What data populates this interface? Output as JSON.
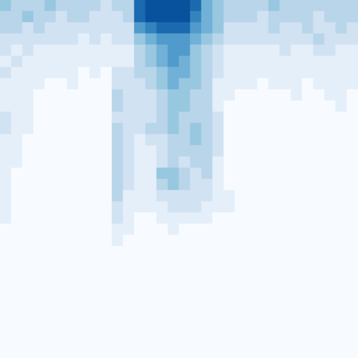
{
  "chart_data": {
    "type": "heatmap",
    "tick_labels": false,
    "grid": false,
    "zlim": [
      0,
      9
    ],
    "cells": [
      [
        4,
        3,
        3,
        3,
        4,
        3,
        3,
        3,
        3,
        2,
        3,
        3,
        8,
        9,
        9,
        9,
        9,
        8,
        5,
        4,
        3,
        3,
        3,
        3,
        4,
        3,
        3,
        3,
        3,
        3,
        3,
        3
      ],
      [
        3,
        3,
        4,
        3,
        3,
        2,
        3,
        3,
        2,
        2,
        2,
        3,
        8,
        9,
        9,
        9,
        9,
        7,
        5,
        4,
        3,
        3,
        3,
        2,
        3,
        3,
        3,
        3,
        2,
        3,
        3,
        3
      ],
      [
        3,
        3,
        2,
        3,
        2,
        2,
        2,
        2,
        2,
        2,
        2,
        2,
        6,
        7,
        8,
        8,
        8,
        6,
        5,
        4,
        2,
        2,
        2,
        2,
        3,
        2,
        2,
        3,
        2,
        2,
        3,
        2
      ],
      [
        2,
        2,
        2,
        2,
        2,
        2,
        2,
        1,
        2,
        1,
        2,
        2,
        4,
        5,
        6,
        6,
        6,
        5,
        4,
        3,
        2,
        2,
        2,
        2,
        2,
        2,
        2,
        2,
        3,
        2,
        2,
        2
      ],
      [
        2,
        1,
        2,
        1,
        1,
        1,
        1,
        1,
        1,
        1,
        1,
        1,
        3,
        4,
        5,
        6,
        6,
        4,
        3,
        2,
        1,
        1,
        1,
        1,
        1,
        2,
        1,
        1,
        2,
        2,
        1,
        1
      ],
      [
        1,
        2,
        1,
        1,
        1,
        1,
        1,
        1,
        1,
        1,
        1,
        1,
        3,
        4,
        5,
        6,
        5,
        4,
        3,
        2,
        1,
        1,
        1,
        1,
        1,
        1,
        1,
        1,
        1,
        1,
        1,
        1
      ],
      [
        2,
        1,
        1,
        1,
        1,
        1,
        1,
        0,
        1,
        0,
        2,
        2,
        3,
        3,
        4,
        5,
        5,
        4,
        3,
        2,
        1,
        1,
        1,
        1,
        1,
        1,
        1,
        1,
        1,
        1,
        1,
        1
      ],
      [
        1,
        1,
        1,
        1,
        0,
        0,
        1,
        0,
        0,
        0,
        2,
        2,
        2,
        3,
        4,
        5,
        4,
        4,
        3,
        1,
        1,
        1,
        1,
        0,
        1,
        1,
        1,
        0,
        1,
        1,
        1,
        1
      ],
      [
        1,
        1,
        1,
        0,
        0,
        0,
        0,
        0,
        0,
        0,
        3,
        2,
        2,
        2,
        3,
        4,
        4,
        3,
        3,
        1,
        1,
        0,
        0,
        0,
        0,
        0,
        1,
        0,
        0,
        1,
        1,
        0
      ],
      [
        1,
        1,
        1,
        0,
        0,
        0,
        0,
        0,
        0,
        0,
        3,
        2,
        2,
        2,
        3,
        4,
        4,
        3,
        3,
        1,
        0,
        0,
        0,
        0,
        0,
        0,
        0,
        0,
        0,
        0,
        1,
        0
      ],
      [
        2,
        1,
        1,
        0,
        0,
        0,
        0,
        0,
        0,
        0,
        2,
        2,
        2,
        2,
        3,
        4,
        3,
        3,
        3,
        2,
        0,
        0,
        0,
        0,
        0,
        0,
        0,
        0,
        0,
        0,
        0,
        0
      ],
      [
        2,
        1,
        1,
        0,
        0,
        0,
        0,
        0,
        0,
        0,
        3,
        2,
        2,
        3,
        3,
        4,
        3,
        4,
        3,
        2,
        0,
        0,
        0,
        0,
        0,
        0,
        0,
        0,
        0,
        0,
        0,
        0
      ],
      [
        1,
        1,
        0,
        0,
        0,
        0,
        0,
        0,
        0,
        0,
        3,
        2,
        1,
        2,
        2,
        3,
        3,
        4,
        3,
        2,
        0,
        0,
        0,
        0,
        0,
        0,
        0,
        0,
        0,
        0,
        0,
        0
      ],
      [
        1,
        1,
        0,
        0,
        0,
        0,
        0,
        0,
        0,
        0,
        3,
        2,
        1,
        1,
        2,
        3,
        3,
        3,
        3,
        2,
        0,
        0,
        0,
        0,
        0,
        0,
        0,
        0,
        0,
        0,
        0,
        0
      ],
      [
        1,
        1,
        0,
        0,
        0,
        0,
        0,
        0,
        0,
        0,
        3,
        2,
        1,
        1,
        2,
        3,
        2,
        3,
        3,
        1,
        0,
        0,
        0,
        0,
        0,
        0,
        0,
        0,
        0,
        0,
        0,
        0
      ],
      [
        1,
        0,
        0,
        0,
        0,
        0,
        0,
        0,
        0,
        0,
        3,
        2,
        1,
        1,
        4,
        4,
        3,
        2,
        3,
        1,
        0,
        0,
        0,
        0,
        0,
        0,
        0,
        0,
        0,
        0,
        0,
        0
      ],
      [
        1,
        0,
        0,
        0,
        0,
        0,
        0,
        0,
        0,
        0,
        3,
        2,
        1,
        1,
        3,
        4,
        3,
        2,
        2,
        1,
        0,
        0,
        0,
        0,
        0,
        0,
        0,
        0,
        0,
        0,
        0,
        0
      ],
      [
        1,
        0,
        0,
        0,
        0,
        0,
        0,
        0,
        0,
        0,
        3,
        1,
        1,
        1,
        2,
        2,
        2,
        2,
        2,
        1,
        1,
        0,
        0,
        0,
        0,
        0,
        0,
        0,
        0,
        0,
        0,
        0
      ],
      [
        1,
        0,
        0,
        0,
        0,
        0,
        0,
        0,
        0,
        0,
        2,
        1,
        1,
        1,
        1,
        2,
        2,
        2,
        1,
        1,
        1,
        0,
        0,
        0,
        0,
        0,
        0,
        0,
        0,
        0,
        0,
        0
      ],
      [
        1,
        0,
        0,
        0,
        0,
        0,
        0,
        0,
        0,
        0,
        2,
        1,
        0,
        0,
        1,
        1,
        1,
        1,
        1,
        0,
        0,
        0,
        0,
        0,
        0,
        0,
        0,
        0,
        0,
        0,
        0,
        0
      ],
      [
        0,
        0,
        0,
        0,
        0,
        0,
        0,
        0,
        0,
        0,
        1,
        1,
        0,
        0,
        0,
        1,
        0,
        0,
        0,
        0,
        0,
        0,
        0,
        0,
        0,
        0,
        0,
        0,
        0,
        0,
        0,
        0
      ],
      [
        0,
        0,
        0,
        0,
        0,
        0,
        0,
        0,
        0,
        0,
        1,
        0,
        0,
        0,
        0,
        0,
        0,
        0,
        0,
        0,
        0,
        0,
        0,
        0,
        0,
        0,
        0,
        0,
        0,
        0,
        0,
        0
      ],
      [
        0,
        0,
        0,
        0,
        0,
        0,
        0,
        0,
        0,
        0,
        0,
        0,
        0,
        0,
        0,
        0,
        0,
        0,
        0,
        0,
        0,
        0,
        0,
        0,
        0,
        0,
        0,
        0,
        0,
        0,
        0,
        0
      ],
      [
        0,
        0,
        0,
        0,
        0,
        0,
        0,
        0,
        0,
        0,
        0,
        0,
        0,
        0,
        0,
        0,
        0,
        0,
        0,
        0,
        0,
        0,
        0,
        0,
        0,
        0,
        0,
        0,
        0,
        0,
        0,
        0
      ],
      [
        0,
        0,
        0,
        0,
        0,
        0,
        0,
        0,
        0,
        0,
        0,
        0,
        0,
        0,
        0,
        0,
        0,
        0,
        0,
        0,
        0,
        0,
        0,
        0,
        0,
        0,
        0,
        0,
        0,
        0,
        0,
        0
      ],
      [
        0,
        0,
        0,
        0,
        0,
        0,
        0,
        0,
        0,
        0,
        0,
        0,
        0,
        0,
        0,
        0,
        0,
        0,
        0,
        0,
        0,
        0,
        0,
        0,
        0,
        0,
        0,
        0,
        0,
        0,
        0,
        0
      ],
      [
        0,
        0,
        0,
        0,
        0,
        0,
        0,
        0,
        0,
        0,
        0,
        0,
        0,
        0,
        0,
        0,
        0,
        0,
        0,
        0,
        0,
        0,
        0,
        0,
        0,
        0,
        0,
        0,
        0,
        0,
        0,
        0
      ],
      [
        0,
        0,
        0,
        0,
        0,
        0,
        0,
        0,
        0,
        0,
        0,
        0,
        0,
        0,
        0,
        0,
        0,
        0,
        0,
        0,
        0,
        0,
        0,
        0,
        0,
        0,
        0,
        0,
        0,
        0,
        0,
        0
      ],
      [
        0,
        0,
        0,
        0,
        0,
        0,
        0,
        0,
        0,
        0,
        0,
        0,
        0,
        0,
        0,
        0,
        0,
        0,
        0,
        0,
        0,
        0,
        0,
        0,
        0,
        0,
        0,
        0,
        0,
        0,
        0,
        0
      ],
      [
        0,
        0,
        0,
        0,
        0,
        0,
        0,
        0,
        0,
        0,
        0,
        0,
        0,
        0,
        0,
        0,
        0,
        0,
        0,
        0,
        0,
        0,
        0,
        0,
        0,
        0,
        0,
        0,
        0,
        0,
        0,
        0
      ],
      [
        0,
        0,
        0,
        0,
        0,
        0,
        0,
        0,
        0,
        0,
        0,
        0,
        0,
        0,
        0,
        0,
        0,
        0,
        0,
        0,
        0,
        0,
        0,
        0,
        0,
        0,
        0,
        0,
        0,
        0,
        0,
        0
      ],
      [
        0,
        0,
        0,
        0,
        0,
        0,
        0,
        0,
        0,
        0,
        0,
        0,
        0,
        0,
        0,
        0,
        0,
        0,
        0,
        0,
        0,
        0,
        0,
        0,
        0,
        0,
        0,
        0,
        0,
        0,
        0,
        0
      ]
    ]
  }
}
